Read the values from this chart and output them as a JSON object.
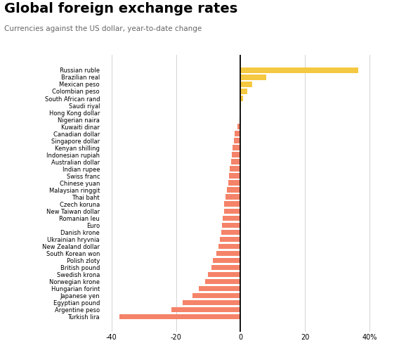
{
  "title": "Global foreign exchange rates",
  "subtitle": "Currencies against the US dollar, year-to-date change",
  "categories": [
    "Russian ruble",
    "Brazilian real",
    "Mexican peso",
    "Colombian peso",
    "South African rand",
    "Saudi riyal",
    "Hong Kong dollar",
    "Nigerian naira",
    "Kuwaiti dinar",
    "Canadian dollar",
    "Singapore dollar",
    "Kenyan shilling",
    "Indonesian rupiah",
    "Australian dollar",
    "Indian rupee",
    "Swiss franc",
    "Chinese yuan",
    "Malaysian ringgit",
    "Thai baht",
    "Czech koruna",
    "New Taiwan dollar",
    "Romanian leu",
    "Euro",
    "Danish krone",
    "Ukrainian hryvnia",
    "New Zealand dollar",
    "South Korean won",
    "Polish zloty",
    "British pound",
    "Swedish krona",
    "Norwegian krone",
    "Hungarian forint",
    "Japanese yen",
    "Egyptian pound",
    "Argentine peso",
    "Turkish lira"
  ],
  "values": [
    36.5,
    8.0,
    3.5,
    2.0,
    0.8,
    0.05,
    -0.2,
    -0.3,
    -1.0,
    -1.8,
    -2.0,
    -2.5,
    -2.8,
    -3.0,
    -3.3,
    -3.6,
    -3.9,
    -4.2,
    -4.6,
    -5.0,
    -5.2,
    -5.5,
    -5.8,
    -6.0,
    -6.3,
    -6.8,
    -7.5,
    -8.5,
    -9.0,
    -10.0,
    -11.0,
    -13.0,
    -15.0,
    -18.0,
    -21.5,
    -37.5
  ],
  "positive_color": "#F5C842",
  "negative_color": "#F4836A",
  "background_color": "#FFFFFF",
  "grid_color": "#CCCCCC",
  "xlim": [
    -43,
    46
  ],
  "xticks": [
    -40,
    -20,
    0,
    20,
    40
  ],
  "xtick_labels": [
    "-40",
    "-20",
    "0",
    "20",
    "40%"
  ],
  "title_fontsize": 14,
  "subtitle_fontsize": 7.5,
  "label_fontsize": 6.0,
  "tick_fontsize": 7.0
}
